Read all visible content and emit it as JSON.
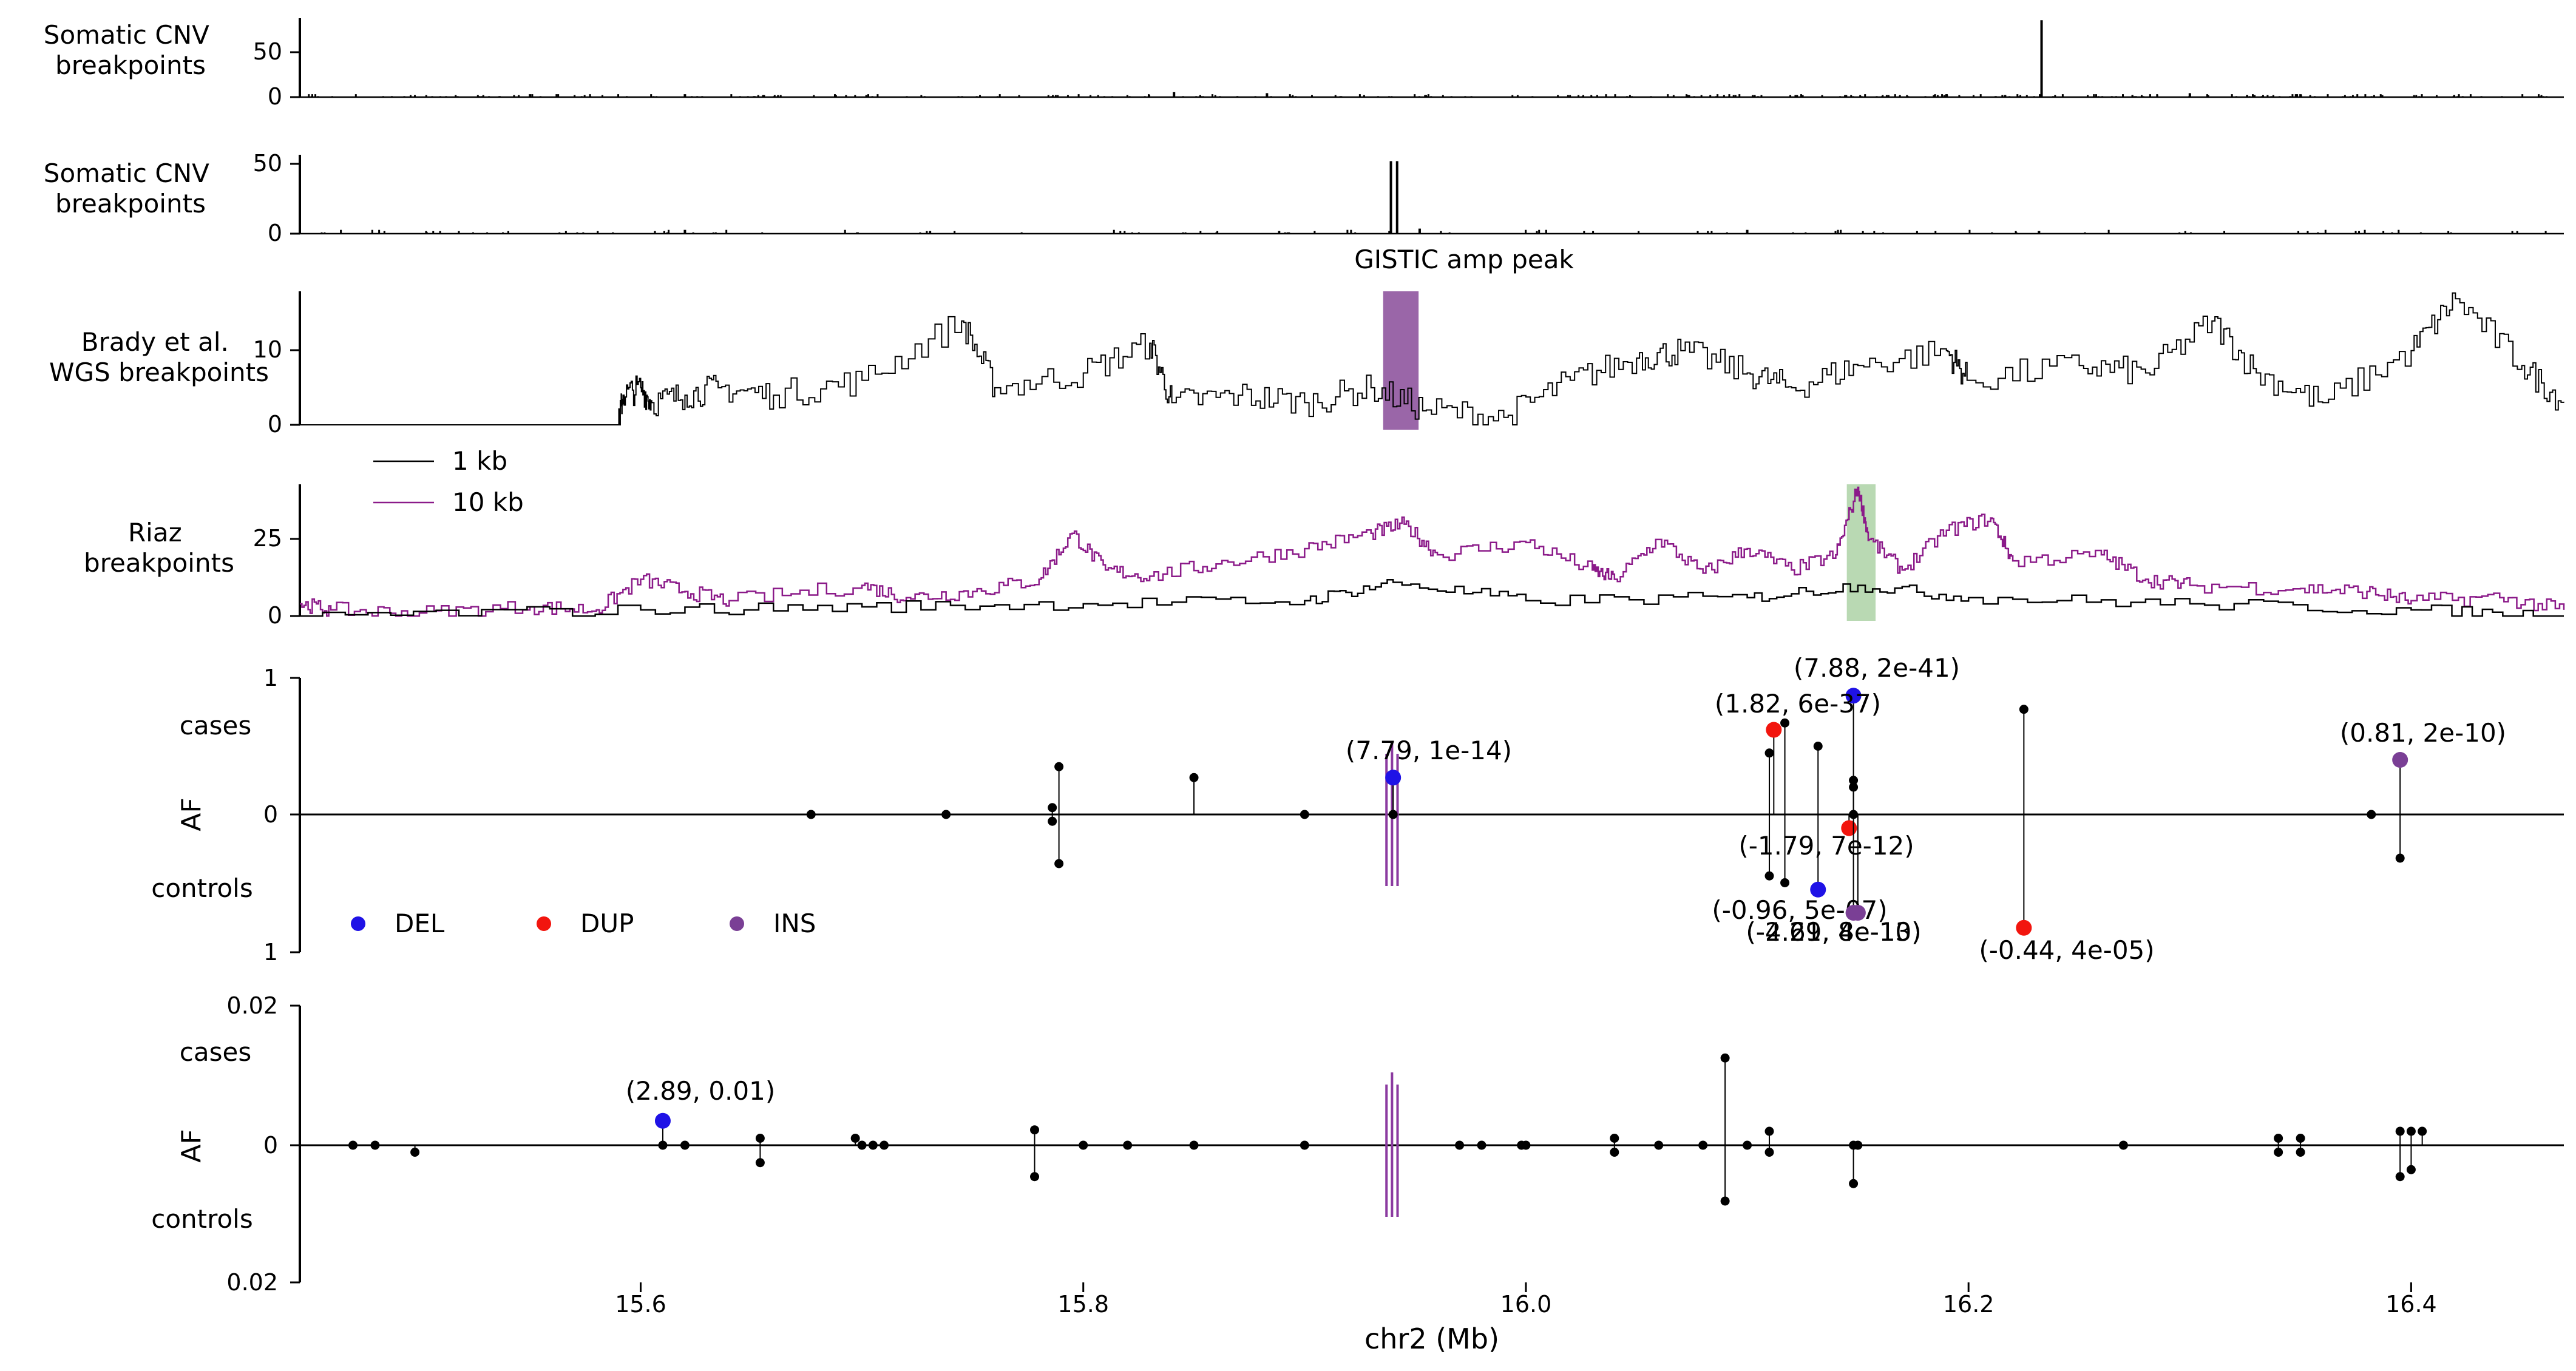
{
  "chart_data": {
    "type": "multi-panel genomic track plot",
    "xlabel": "chr2 (Mb)",
    "xlim": [
      15.446,
      16.469
    ],
    "xticks": [
      15.6,
      15.8,
      16.0,
      16.2,
      16.4
    ],
    "xtick_labels": [
      "15.6",
      "15.8",
      "16.0",
      "16.2",
      "16.4"
    ],
    "panels": [
      {
        "id": "somatic1",
        "type": "bar",
        "ylabel": "Somatic CNV\nbreakpoints",
        "ylim": [
          0,
          80
        ],
        "yticks": [
          0,
          50
        ],
        "peaks": [
          [
            16.233,
            78
          ],
          [
            15.841,
            5
          ],
          [
            15.883,
            4
          ],
          [
            15.62,
            3
          ],
          [
            15.55,
            3
          ],
          [
            16.3,
            4
          ],
          [
            16.35,
            3
          ]
        ]
      },
      {
        "id": "somatic2",
        "type": "bar",
        "ylabel": "Somatic CNV\nbreakpoints",
        "ylim": [
          0,
          62
        ],
        "yticks": [
          0,
          50
        ],
        "peaks": [
          [
            15.939,
            57
          ],
          [
            15.9418,
            57
          ],
          [
            15.952,
            4
          ],
          [
            15.62,
            3
          ],
          [
            16.1,
            3
          ]
        ],
        "annotation": "GISTIC amp peak"
      },
      {
        "id": "brady",
        "type": "line",
        "ylabel": "Brady et al.\nWGS breakpoints",
        "ylim": [
          0,
          18
        ],
        "yticks": [
          0,
          10
        ],
        "highlight": [
          15.9355,
          15.9515
        ],
        "highlight_color": "#9a66a8",
        "segments": [
          [
            15.446,
            0
          ],
          [
            15.59,
            0
          ],
          [
            15.592,
            4
          ],
          [
            15.6,
            5
          ],
          [
            15.605,
            3
          ],
          [
            15.62,
            4
          ],
          [
            15.635,
            5
          ],
          [
            15.66,
            4
          ],
          [
            15.7,
            6
          ],
          [
            15.745,
            14
          ],
          [
            15.76,
            5
          ],
          [
            15.8,
            7
          ],
          [
            15.83,
            11
          ],
          [
            15.84,
            3
          ],
          [
            15.87,
            4
          ],
          [
            15.9,
            3
          ],
          [
            15.93,
            5
          ],
          [
            15.955,
            2
          ],
          [
            15.99,
            1
          ],
          [
            16.02,
            6
          ],
          [
            16.05,
            9
          ],
          [
            16.07,
            10
          ],
          [
            16.1,
            7
          ],
          [
            16.12,
            5
          ],
          [
            16.15,
            8
          ],
          [
            16.19,
            10
          ],
          [
            16.2,
            6
          ],
          [
            16.25,
            8
          ],
          [
            16.28,
            7
          ],
          [
            16.31,
            14
          ],
          [
            16.33,
            7
          ],
          [
            16.36,
            3
          ],
          [
            16.4,
            10
          ],
          [
            16.42,
            17
          ],
          [
            16.45,
            8
          ],
          [
            16.469,
            3
          ]
        ]
      },
      {
        "id": "riaz",
        "type": "line",
        "ylabel": "Riaz\nbreakpoints",
        "ylim": [
          0,
          43
        ],
        "yticks": [
          0,
          25
        ],
        "highlight": [
          16.145,
          16.158
        ],
        "highlight_color": "#b9d9b3",
        "legend": [
          {
            "label": "1 kb",
            "color": "#000000"
          },
          {
            "label": "10 kb",
            "color": "#8b1a89"
          }
        ],
        "series": [
          {
            "name": "10 kb",
            "color": "#8b1a89",
            "points": [
              [
                15.446,
                4
              ],
              [
                15.46,
                2
              ],
              [
                15.5,
                1
              ],
              [
                15.55,
                3
              ],
              [
                15.58,
                2
              ],
              [
                15.6,
                12
              ],
              [
                15.62,
                8
              ],
              [
                15.64,
                5
              ],
              [
                15.7,
                10
              ],
              [
                15.72,
                6
              ],
              [
                15.75,
                8
              ],
              [
                15.78,
                12
              ],
              [
                15.795,
                27
              ],
              [
                15.81,
                15
              ],
              [
                15.83,
                13
              ],
              [
                15.86,
                17
              ],
              [
                15.9,
                22
              ],
              [
                15.93,
                27
              ],
              [
                15.945,
                30
              ],
              [
                15.96,
                20
              ],
              [
                16.0,
                24
              ],
              [
                16.03,
                15
              ],
              [
                16.04,
                12
              ],
              [
                16.06,
                25
              ],
              [
                16.08,
                14
              ],
              [
                16.1,
                22
              ],
              [
                16.12,
                15
              ],
              [
                16.14,
                20
              ],
              [
                16.15,
                42
              ],
              [
                16.155,
                25
              ],
              [
                16.17,
                15
              ],
              [
                16.19,
                28
              ],
              [
                16.21,
                32
              ],
              [
                16.22,
                18
              ],
              [
                16.26,
                20
              ],
              [
                16.28,
                12
              ],
              [
                16.3,
                10
              ],
              [
                16.35,
                9
              ],
              [
                16.38,
                8
              ],
              [
                16.4,
                5
              ],
              [
                16.44,
                6
              ],
              [
                16.469,
                2
              ]
            ]
          },
          {
            "name": "1 kb",
            "color": "#000000",
            "points": [
              [
                15.446,
                0
              ],
              [
                15.6,
                2
              ],
              [
                15.7,
                3
              ],
              [
                15.8,
                4
              ],
              [
                15.9,
                5
              ],
              [
                15.94,
                11
              ],
              [
                16.0,
                5
              ],
              [
                16.1,
                6
              ],
              [
                16.15,
                10
              ],
              [
                16.2,
                6
              ],
              [
                16.3,
                4
              ],
              [
                16.4,
                2
              ],
              [
                16.469,
                0
              ]
            ]
          }
        ]
      },
      {
        "id": "af_top",
        "type": "lollipop",
        "ylabel": "AF",
        "cases_label": "cases",
        "controls_label": "controls",
        "ylim": [
          -1,
          1
        ],
        "ytick_labels": [
          "1",
          "0",
          "1"
        ],
        "legend": [
          {
            "label": "DEL",
            "color": "#1f12e6"
          },
          {
            "label": "DUP",
            "color": "#f2150e"
          },
          {
            "label": "INS",
            "color": "#7a3f95"
          }
        ],
        "highlighted_points": [
          {
            "x": 15.94,
            "af": 0.27,
            "type": "DEL",
            "label": "(7.79, 1e-14)"
          },
          {
            "x": 16.148,
            "af": 0.87,
            "type": "DEL",
            "label": "(7.88, 2e-41)"
          },
          {
            "x": 16.112,
            "af": 0.62,
            "type": "DUP",
            "label": "(1.82, 6e-37)"
          },
          {
            "x": 16.395,
            "af": 0.4,
            "type": "INS",
            "label": "(0.81, 2e-10)"
          },
          {
            "x": 16.146,
            "af": -0.1,
            "type": "DUP",
            "label": "(-1.79, 7e-12)"
          },
          {
            "x": 16.132,
            "af": -0.55,
            "type": "DEL",
            "label": "(-0.96, 5e-07)"
          },
          {
            "x": 16.15,
            "af": -0.72,
            "type": "INS",
            "label": "(-2.21, 8e-13)"
          },
          {
            "x": 16.148,
            "af": -0.72,
            "type": "INS",
            "label": "(-4.69, 4e-10)"
          },
          {
            "x": 16.225,
            "af": -0.83,
            "type": "DUP",
            "label": "(-0.44, 4e-05)"
          }
        ],
        "other_variants": [
          [
            15.677,
            0.0
          ],
          [
            15.738,
            0.0
          ],
          [
            15.786,
            0.05
          ],
          [
            15.786,
            -0.05
          ],
          [
            15.789,
            0.35
          ],
          [
            15.789,
            -0.36
          ],
          [
            15.85,
            0.27
          ],
          [
            15.9,
            0.0
          ],
          [
            15.94,
            0.0
          ],
          [
            16.11,
            0.45
          ],
          [
            16.11,
            -0.45
          ],
          [
            16.117,
            0.67
          ],
          [
            16.117,
            -0.5
          ],
          [
            16.132,
            0.5
          ],
          [
            16.148,
            0.2
          ],
          [
            16.148,
            0.25
          ],
          [
            16.148,
            0.0
          ],
          [
            16.225,
            0.77
          ],
          [
            16.382,
            0.0
          ],
          [
            16.395,
            -0.32
          ]
        ]
      },
      {
        "id": "af_bottom",
        "type": "lollipop",
        "ylabel": "AF",
        "cases_label": "cases",
        "controls_label": "controls",
        "ylim": [
          -0.02,
          0.02
        ],
        "ytick_labels": [
          "0.02",
          "0",
          "0.02"
        ],
        "highlighted_points": [
          {
            "x": 15.61,
            "af": 0.0035,
            "type": "DEL",
            "label": "(2.89, 0.01)"
          }
        ],
        "other_variants": [
          [
            15.47,
            0
          ],
          [
            15.48,
            0
          ],
          [
            15.498,
            -0.001
          ],
          [
            15.61,
            0
          ],
          [
            15.62,
            0
          ],
          [
            15.654,
            0.001
          ],
          [
            15.654,
            -0.0025
          ],
          [
            15.697,
            0.001
          ],
          [
            15.7,
            0
          ],
          [
            15.705,
            0
          ],
          [
            15.71,
            0
          ],
          [
            15.778,
            0.0022
          ],
          [
            15.778,
            -0.0045
          ],
          [
            15.8,
            0
          ],
          [
            15.82,
            0
          ],
          [
            15.85,
            0
          ],
          [
            15.9,
            0
          ],
          [
            15.97,
            0
          ],
          [
            15.98,
            0
          ],
          [
            15.998,
            0
          ],
          [
            16.0,
            0
          ],
          [
            16.04,
            0.001
          ],
          [
            16.04,
            -0.001
          ],
          [
            16.06,
            0
          ],
          [
            16.08,
            0
          ],
          [
            16.09,
            0.0125
          ],
          [
            16.09,
            -0.008
          ],
          [
            16.1,
            0
          ],
          [
            16.11,
            0.002
          ],
          [
            16.11,
            -0.001
          ],
          [
            16.148,
            0
          ],
          [
            16.148,
            -0.0055
          ],
          [
            16.15,
            0
          ],
          [
            16.27,
            0
          ],
          [
            16.34,
            0.001
          ],
          [
            16.34,
            -0.001
          ],
          [
            16.35,
            0.001
          ],
          [
            16.35,
            -0.001
          ],
          [
            16.395,
            0.002
          ],
          [
            16.395,
            -0.0045
          ],
          [
            16.4,
            0.002
          ],
          [
            16.4,
            -0.0035
          ],
          [
            16.405,
            0.002
          ]
        ]
      }
    ]
  }
}
